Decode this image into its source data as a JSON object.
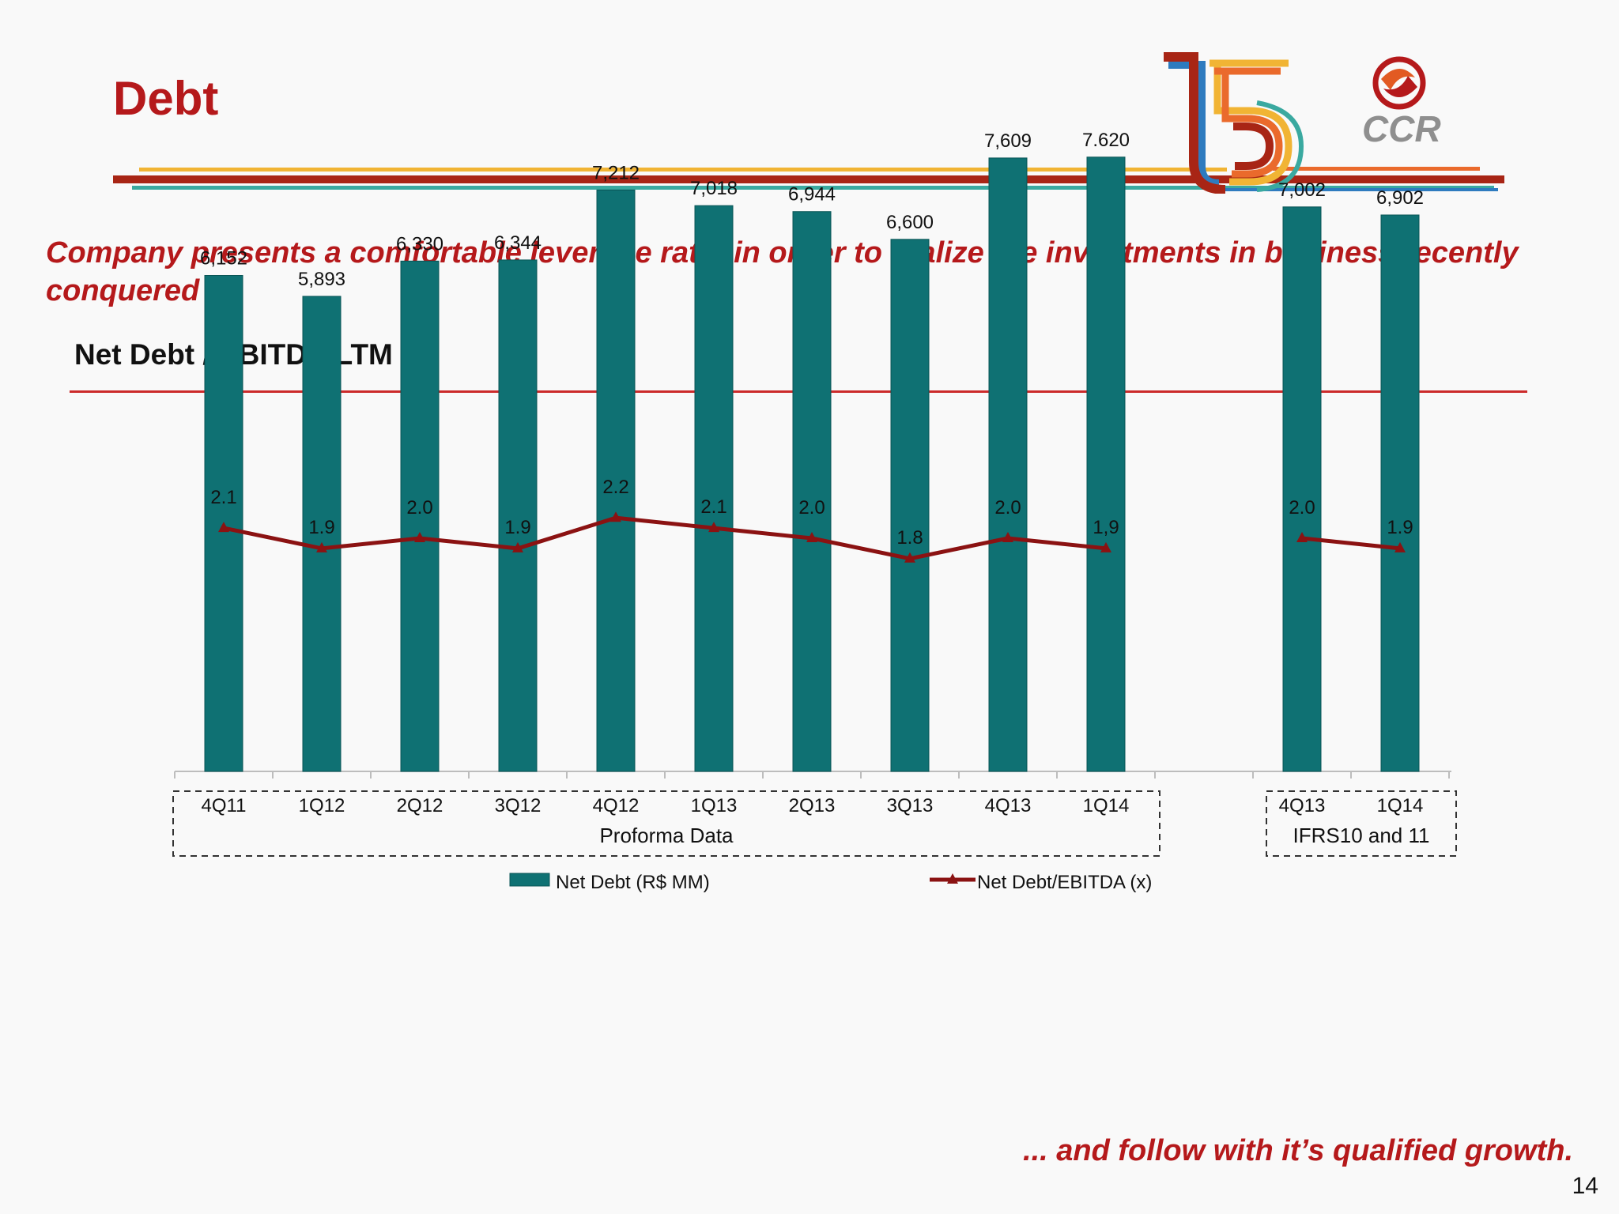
{
  "header": {
    "title": "Debt",
    "logo_text": "CCR",
    "anniversary_mark": "15"
  },
  "headline": "Company presents a comfortable leverage ratio in order to realize the investments in business recently conquered ...",
  "footer": "... and follow with it’s qualified growth.",
  "page_number": "14",
  "colors": {
    "title_red": "#b5191b",
    "bar_teal": "#0f7173",
    "line_dark_red": "#8b1212"
  },
  "chart_data": {
    "type": "bar+line",
    "title": "Net Debt / EBITDA LTM",
    "categories": [
      "4Q11",
      "1Q12",
      "2Q12",
      "3Q12",
      "4Q12",
      "1Q13",
      "2Q13",
      "3Q13",
      "4Q13",
      "1Q14",
      "4Q13",
      "1Q14"
    ],
    "series": [
      {
        "name": "Net Debt (R$  MM)",
        "type": "bar",
        "values": [
          6152,
          5893,
          6330,
          6344,
          7212,
          7018,
          6944,
          6600,
          7609,
          7620,
          7002,
          6902
        ],
        "labels": [
          "6,152",
          "5,893",
          "6,330",
          "6,344",
          "7,212",
          "7,018",
          "6,944",
          "6,600",
          "7,609",
          "7.620",
          "7,002",
          "6,902"
        ]
      },
      {
        "name": "Net Debt/EBITDA (x)",
        "type": "line",
        "values": [
          2.1,
          1.9,
          2.0,
          1.9,
          2.2,
          2.1,
          2.0,
          1.8,
          2.0,
          1.9,
          2.0,
          1.9
        ],
        "labels": [
          "2.1",
          "1.9",
          "2.0",
          "1.9",
          "2.2",
          "2.1",
          "2.0",
          "1.8",
          "2.0",
          "1,9",
          "2.0",
          "1.9"
        ]
      }
    ],
    "groups": [
      {
        "label": "Proforma Data",
        "from": 0,
        "to": 9
      },
      {
        "label": "IFRS10 and 11",
        "from": 10,
        "to": 11
      }
    ],
    "legend": [
      "Net Debt (R$  MM)",
      "Net Debt/EBITDA (x)"
    ]
  }
}
